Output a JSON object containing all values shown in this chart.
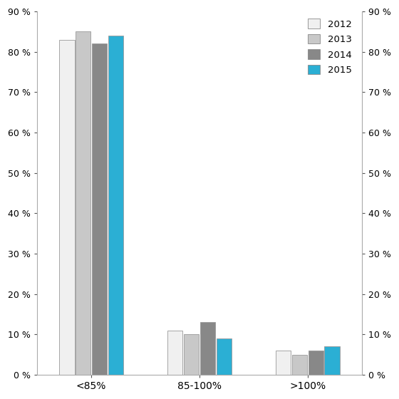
{
  "categories": [
    "<85%",
    "85-100%",
    ">100%"
  ],
  "series": {
    "2012": [
      83,
      11,
      6
    ],
    "2013": [
      85,
      10,
      5
    ],
    "2014": [
      82,
      13,
      6
    ],
    "2015": [
      84,
      9,
      7
    ]
  },
  "colors": {
    "2012": "#f0f0f0",
    "2013": "#c8c8c8",
    "2014": "#888888",
    "2015": "#2bafd4"
  },
  "ylim": [
    0,
    90
  ],
  "yticks": [
    0,
    10,
    20,
    30,
    40,
    50,
    60,
    70,
    80,
    90
  ],
  "bar_width": 0.14,
  "legend_labels": [
    "2012",
    "2013",
    "2014",
    "2015"
  ],
  "background_color": "#ffffff",
  "edge_color": "#999999",
  "tick_label_fontsize": 9,
  "x_label_fontsize": 10
}
